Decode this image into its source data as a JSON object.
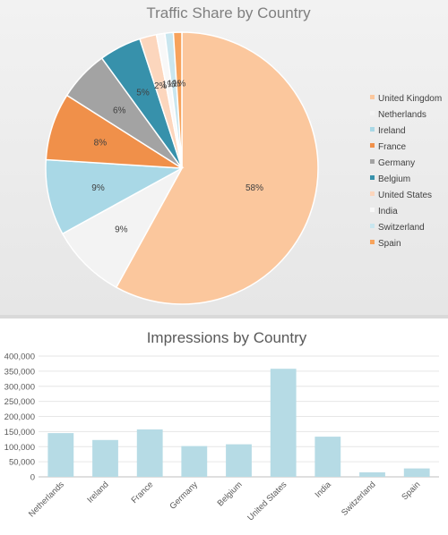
{
  "chart_data": [
    {
      "type": "pie",
      "title": "Traffic Share by Country",
      "legend_position": "right",
      "labels": [
        "United Kingdom",
        "Netherlands",
        "Ireland",
        "France",
        "Germany",
        "Belgium",
        "United States",
        "India",
        "Switzerland",
        "Spain"
      ],
      "values": [
        58,
        9,
        9,
        8,
        6,
        5,
        2,
        1,
        1,
        1
      ],
      "value_labels": [
        "58%",
        "9%",
        "9%",
        "8%",
        "6%",
        "5%",
        "2%",
        "1%",
        "1%",
        "1%"
      ],
      "colors": [
        "#fbc79d",
        "#f3f3f3",
        "#a9d8e6",
        "#f0904a",
        "#a3a3a3",
        "#3791ab",
        "#fcd6bd",
        "#f8f8f8",
        "#c9e6ef",
        "#f7a35c"
      ]
    },
    {
      "type": "bar",
      "title": "Impressions by Country",
      "categories": [
        "Netherlands",
        "Ireland",
        "France",
        "Germany",
        "Belgium",
        "United States",
        "India",
        "Switzerland",
        "Spain"
      ],
      "values": [
        145000,
        122000,
        157000,
        102000,
        108000,
        358000,
        133000,
        15000,
        28000
      ],
      "ylim": [
        0,
        400000
      ],
      "yticks": [
        "0",
        "50,000",
        "100,000",
        "150,000",
        "200,000",
        "250,000",
        "300,000",
        "350,000",
        "400,000"
      ],
      "grid": true,
      "bar_color": "#b6dbe5"
    }
  ]
}
